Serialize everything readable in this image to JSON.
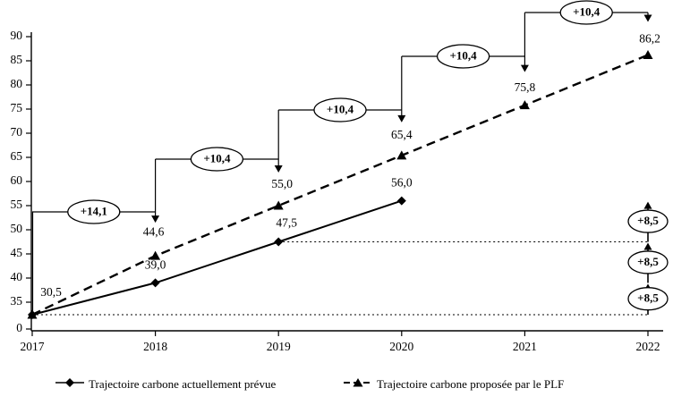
{
  "chart_data": {
    "type": "line",
    "title": "",
    "x_tick_labels": [
      "2017",
      "2018",
      "2019",
      "2020",
      "2021",
      "2022"
    ],
    "y_tick_labels": [
      "0",
      "35",
      "40",
      "45",
      "50",
      "55",
      "60",
      "65",
      "70",
      "75",
      "80",
      "85",
      "90"
    ],
    "y_axis": {
      "min": 0,
      "max": 90,
      "break_between": [
        0,
        35
      ]
    },
    "grid": false,
    "legend_position": "bottom",
    "series": [
      {
        "name": "Trajectoire carbone actuellement prévue",
        "line_style": "solid",
        "marker": "diamond",
        "x": [
          2017,
          2018,
          2019,
          2020
        ],
        "values": [
          30.5,
          39.0,
          47.5,
          56.0
        ],
        "point_labels": [
          "30,5",
          "39,0",
          "47,5",
          "56,0"
        ]
      },
      {
        "name": "Trajectoire carbone proposée par le PLF",
        "line_style": "dashed",
        "marker": "triangle",
        "x": [
          2017,
          2018,
          2019,
          2020,
          2021,
          2022
        ],
        "values": [
          30.5,
          44.6,
          55.0,
          65.4,
          75.8,
          86.2
        ],
        "point_labels": [
          "",
          "44,6",
          "55,0",
          "65,4",
          "75,8",
          "86,2"
        ]
      }
    ],
    "step_annotations": [
      {
        "label": "+14,1",
        "from_year": 2017,
        "to_year": 2018
      },
      {
        "label": "+10,4",
        "from_year": 2018,
        "to_year": 2019
      },
      {
        "label": "+10,4",
        "from_year": 2019,
        "to_year": 2020
      },
      {
        "label": "+10,4",
        "from_year": 2020,
        "to_year": 2021
      },
      {
        "label": "+10,4",
        "from_year": 2021,
        "to_year": 2022
      }
    ],
    "right_increment_annotations": {
      "year": 2022,
      "start_value": 30.5,
      "increment": 8.5,
      "labels": [
        "+8,5",
        "+8,5",
        "+8,5"
      ]
    },
    "dotted_reference_lines": [
      {
        "value": 30.5,
        "from_year": 2017,
        "to_year": 2022
      },
      {
        "value": 47.5,
        "from_year": 2019,
        "to_year": 2022
      }
    ],
    "colors": {
      "foreground": "#000000",
      "background": "#ffffff"
    }
  }
}
